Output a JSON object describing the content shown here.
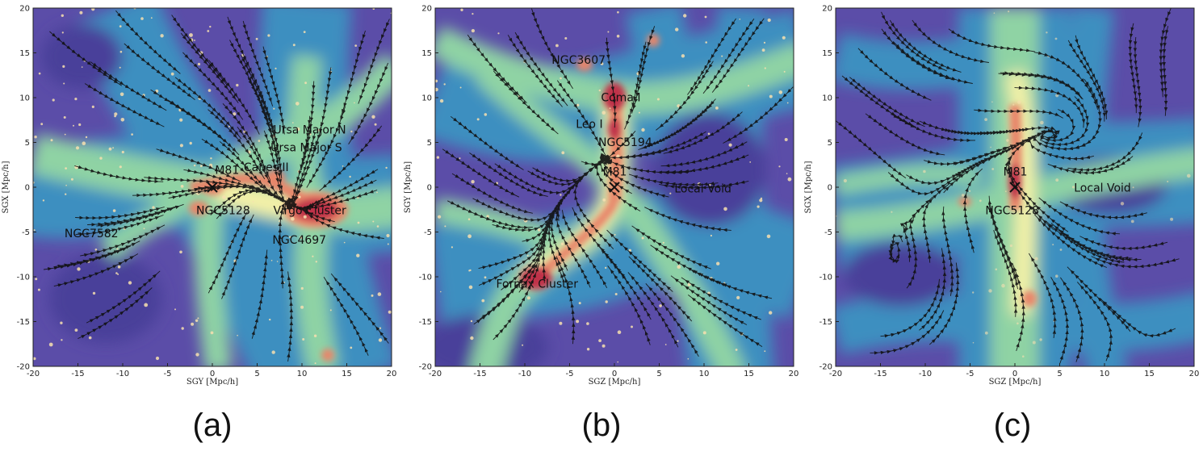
{
  "colors": {
    "background": "#5b4da8",
    "void": "#4a3f9a",
    "mid": "#3e8fc0",
    "filament": "#8fd3a4",
    "dense": "#f7f2a8",
    "node": "#e8866a",
    "core": "#c0334a",
    "stream": "#111111"
  },
  "chart_data": [
    {
      "type": "heatmap",
      "panel_label": "(a)",
      "xlabel": "SGY [Mpc/h]",
      "ylabel": "SGX [Mpc/h]",
      "xlim": [
        -20,
        20
      ],
      "ylim": [
        -20,
        20
      ],
      "xticks": [
        -20,
        -15,
        -10,
        -5,
        0,
        5,
        10,
        15,
        20
      ],
      "yticks": [
        -20,
        -15,
        -10,
        -5,
        0,
        5,
        10,
        15,
        20
      ],
      "annotations": [
        {
          "text": "M81",
          "x": 0.3,
          "y": 1.5
        },
        {
          "text": "Canes II",
          "x": 3.5,
          "y": 1.8
        },
        {
          "text": "Ursa Major N",
          "x": 6.8,
          "y": 6.0
        },
        {
          "text": "Ursa Major S",
          "x": 6.5,
          "y": 4.0
        },
        {
          "text": "NGC5128",
          "x": -1.8,
          "y": -3.0
        },
        {
          "text": "Virgo Cluster",
          "x": 6.8,
          "y": -3.0
        },
        {
          "text": "NGC7582",
          "x": -16.5,
          "y": -5.6
        },
        {
          "text": "NGC4697",
          "x": 6.7,
          "y": -6.3
        }
      ],
      "markers": [
        {
          "label": "M81",
          "x": 0,
          "y": 0
        }
      ]
    },
    {
      "type": "heatmap",
      "panel_label": "(b)",
      "xlabel": "SGZ [Mpc/h]",
      "ylabel": "SGY [Mpc/h]",
      "xlim": [
        -20,
        20
      ],
      "ylim": [
        -20,
        20
      ],
      "xticks": [
        -20,
        -15,
        -10,
        -5,
        0,
        5,
        10,
        15,
        20
      ],
      "yticks": [
        -20,
        -15,
        -10,
        -5,
        0,
        5,
        10,
        15,
        20
      ],
      "annotations": [
        {
          "text": "NGC3607",
          "x": -7.0,
          "y": 13.8
        },
        {
          "text": "Coma I",
          "x": -1.5,
          "y": 9.6
        },
        {
          "text": "Leo I",
          "x": -4.3,
          "y": 6.6
        },
        {
          "text": "NGC5194",
          "x": -1.8,
          "y": 4.6
        },
        {
          "text": "M81",
          "x": -1.3,
          "y": 1.3
        },
        {
          "text": "Local Void",
          "x": 6.7,
          "y": -0.6
        },
        {
          "text": "Fornax Cluster",
          "x": -13.2,
          "y": -11.2
        }
      ],
      "markers": [
        {
          "label": "M81",
          "x": 0,
          "y": 0
        }
      ]
    },
    {
      "type": "heatmap",
      "panel_label": "(c)",
      "xlabel": "SGZ [Mpc/h]",
      "ylabel": "SGX [Mpc/h]",
      "xlim": [
        -20,
        20
      ],
      "ylim": [
        -20,
        20
      ],
      "xticks": [
        -20,
        -15,
        -10,
        -5,
        0,
        5,
        10,
        15,
        20
      ],
      "yticks": [
        -20,
        -15,
        -10,
        -5,
        0,
        5,
        10,
        15,
        20
      ],
      "annotations": [
        {
          "text": "M81",
          "x": -1.3,
          "y": 1.3
        },
        {
          "text": "Local Void",
          "x": 6.6,
          "y": -0.5
        },
        {
          "text": "NGC5128",
          "x": -3.3,
          "y": -3.0
        }
      ],
      "markers": [
        {
          "label": "M81",
          "x": 0,
          "y": 0
        }
      ]
    }
  ]
}
